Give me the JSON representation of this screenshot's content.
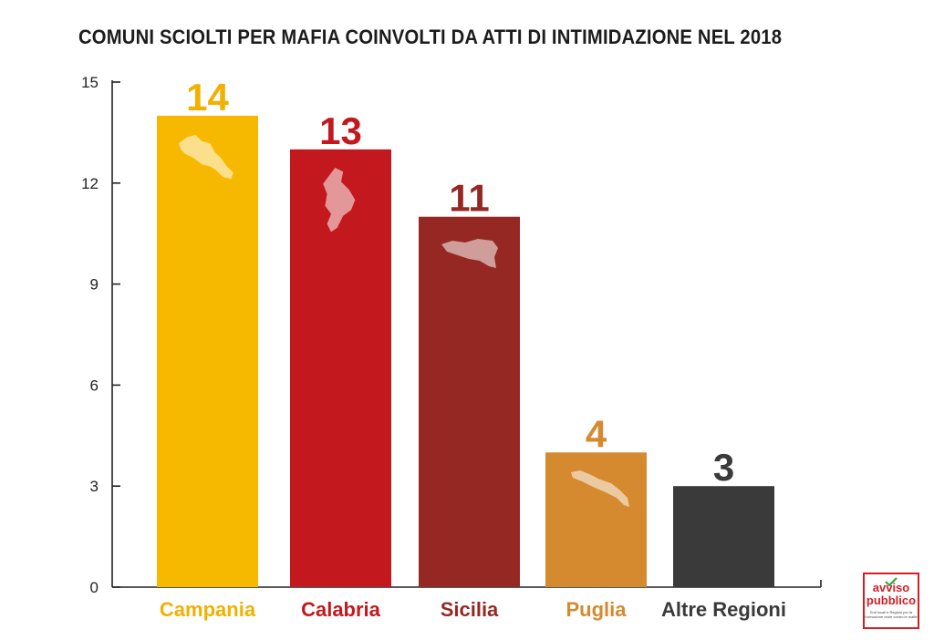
{
  "chart_data": {
    "type": "bar",
    "title": "COMUNI SCIOLTI PER MAFIA COINVOLTI DA ATTI DI INTIMIDAZIONE NEL 2018",
    "xlabel": "",
    "ylabel": "",
    "ylim": [
      0,
      15
    ],
    "yticks": [
      0,
      3,
      6,
      9,
      12,
      15
    ],
    "categories": [
      "Campania",
      "Calabria",
      "Sicilia",
      "Puglia",
      "Altre Regioni"
    ],
    "values": [
      14,
      13,
      11,
      4,
      3
    ],
    "colors": [
      "#f7b900",
      "#c3191e",
      "#962823",
      "#d58a30",
      "#3a3a3a"
    ],
    "value_label_colors": [
      "#f2b000",
      "#c3191e",
      "#962823",
      "#d58a30",
      "#3a3a3a"
    ],
    "region_icons": [
      "campania-map-icon",
      "calabria-map-icon",
      "sicilia-map-icon",
      "puglia-map-icon",
      ""
    ],
    "grid": false,
    "legend": "none"
  },
  "logo": {
    "line1": "avviso",
    "line2": "pubblico",
    "tagline": "Enti locali e Regioni per la formazione civile contro le mafie"
  }
}
